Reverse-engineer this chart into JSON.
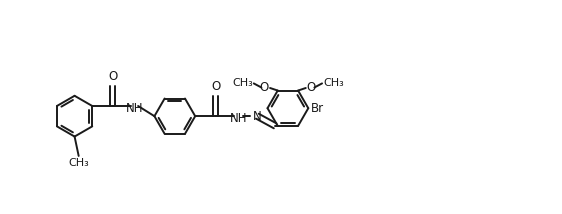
{
  "background_color": "#ffffff",
  "line_color": "#1a1a1a",
  "line_width": 1.4,
  "font_size": 8.5,
  "fig_width": 5.62,
  "fig_height": 2.14,
  "dpi": 100,
  "xlim": [
    -5.8,
    5.2
  ],
  "ylim": [
    -1.6,
    1.6
  ]
}
